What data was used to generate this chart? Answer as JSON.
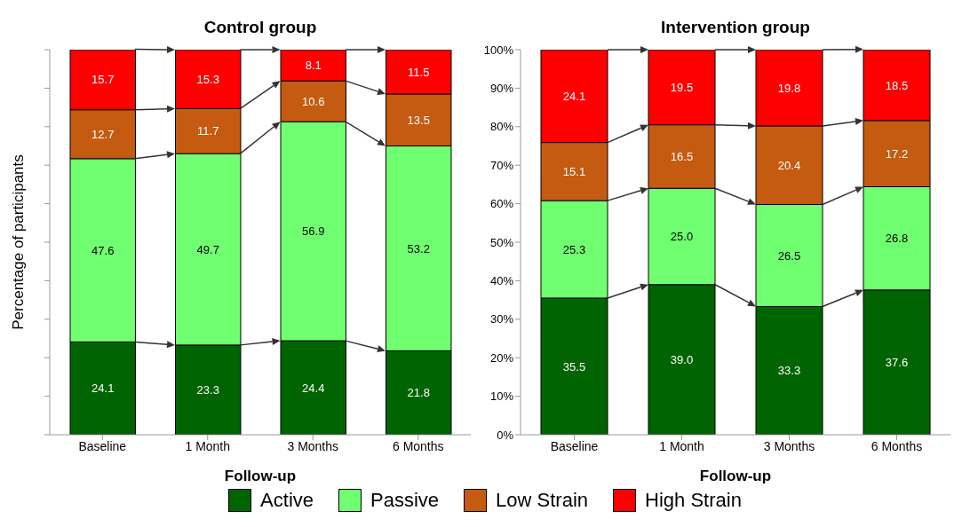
{
  "chart_data": [
    {
      "type": "bar",
      "title": "Control group",
      "xlabel": "Follow-up",
      "ylabel": "Percentage of participants",
      "stacked": true,
      "legend": "bottom",
      "tick_labels": "x",
      "categories": [
        "Baseline",
        "1 Month",
        "3 Months",
        "6 Months"
      ],
      "ylim": [
        0,
        100
      ],
      "yticks": [
        {
          "value": 0,
          "label": null
        },
        {
          "value": 10,
          "label": null
        },
        {
          "value": 20,
          "label": null
        },
        {
          "value": 30,
          "label": null
        },
        {
          "value": 40,
          "label": null
        },
        {
          "value": 50,
          "label": null
        },
        {
          "value": 60,
          "label": null
        },
        {
          "value": 70,
          "label": null
        },
        {
          "value": 80,
          "label": null
        },
        {
          "value": 90,
          "label": null
        },
        {
          "value": 100,
          "label": null
        }
      ],
      "grid": false,
      "series": [
        {
          "name": "Active",
          "color": "#006400",
          "values": [
            24.1,
            23.3,
            24.4,
            21.8
          ],
          "value_labels": [
            "24.1",
            "23.3",
            "24.4",
            "21.8"
          ]
        },
        {
          "name": "Passive",
          "color": "#70ff70",
          "values": [
            47.6,
            49.7,
            56.9,
            53.2
          ],
          "value_labels": [
            "47.6",
            "49.7",
            "56.9",
            "53.2"
          ]
        },
        {
          "name": "Low Strain",
          "color": "#c55a11",
          "values": [
            12.7,
            11.7,
            10.6,
            13.5
          ],
          "value_labels": [
            "12.7",
            "11.7",
            "10.6",
            "13.5"
          ]
        },
        {
          "name": "High Strain",
          "color": "#ff0000",
          "values": [
            15.7,
            15.3,
            8.1,
            11.5
          ],
          "value_labels": [
            "15.7",
            "15.3",
            "8.1",
            "11.5"
          ]
        }
      ]
    },
    {
      "type": "bar",
      "title": "Intervention group",
      "xlabel": "Follow-up",
      "stacked": true,
      "categories": [
        "Baseline",
        "1 Month",
        "3 Months",
        "6 Months"
      ],
      "ylim": [
        0,
        100
      ],
      "yticks": [
        {
          "value": 0,
          "label": "0%"
        },
        {
          "value": 10,
          "label": "10%"
        },
        {
          "value": 20,
          "label": "20%"
        },
        {
          "value": 30,
          "label": "30%"
        },
        {
          "value": 40,
          "label": "40%"
        },
        {
          "value": 50,
          "label": "50%"
        },
        {
          "value": 60,
          "label": "60%"
        },
        {
          "value": 70,
          "label": "70%"
        },
        {
          "value": 80,
          "label": "80%"
        },
        {
          "value": 90,
          "label": "90%"
        },
        {
          "value": 100,
          "label": "100%"
        }
      ],
      "grid": false,
      "series": [
        {
          "color": "#006400",
          "values": [
            35.5,
            39.0,
            33.3,
            37.6
          ],
          "value_labels": [
            "35.5",
            "39.0",
            "33.3",
            "37.6"
          ]
        },
        {
          "color": "#70ff70",
          "values": [
            25.3,
            25.0,
            26.5,
            26.8
          ],
          "value_labels": [
            "25.3",
            "25.0",
            "26.5",
            "26.8"
          ]
        },
        {
          "color": "#c55a11",
          "values": [
            15.1,
            16.5,
            20.4,
            17.2
          ],
          "value_labels": [
            "15.1",
            "16.5",
            "20.4",
            "17.2"
          ]
        },
        {
          "color": "#ff0000",
          "values": [
            24.1,
            19.5,
            19.8,
            18.5
          ],
          "value_labels": [
            "24.1",
            "19.5",
            "19.8",
            "18.5"
          ]
        }
      ]
    }
  ]
}
